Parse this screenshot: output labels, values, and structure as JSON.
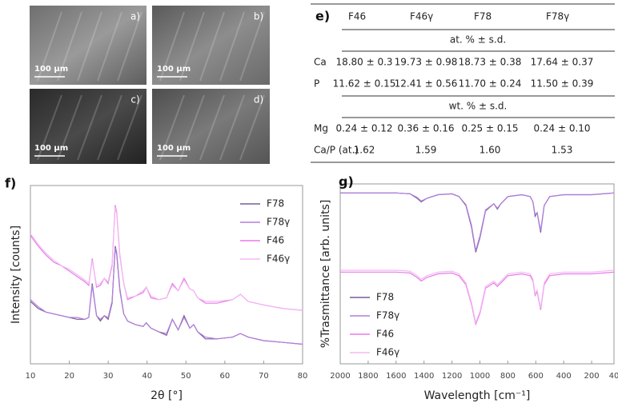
{
  "sem_panels": [
    {
      "label": "a)",
      "scale": "100 µm"
    },
    {
      "label": "b)",
      "scale": "100 µm"
    },
    {
      "label": "c)",
      "scale": "100 µm"
    },
    {
      "label": "d)",
      "scale": "100 µm"
    }
  ],
  "table": {
    "label": "e)",
    "columns": [
      "F46",
      "F46γ",
      "F78",
      "F78γ"
    ],
    "sections": [
      {
        "unit": "at. % ± s.d.",
        "rows": [
          [
            "Ca",
            "18.80 ± 0.3",
            "19.73 ± 0.98",
            "18.73 ± 0.38",
            "17.64 ± 0.37"
          ],
          [
            "P",
            "11.62 ± 0.15",
            "12.41 ± 0.56",
            "11.70 ± 0.24",
            "11.50 ± 0.39"
          ]
        ]
      },
      {
        "unit": "wt. % ± s.d.",
        "rows": [
          [
            "Mg",
            "0.24 ± 0.12",
            "0.36 ± 0.16",
            "0.25 ± 0.15",
            "0.24 ± 0.10"
          ],
          [
            "Ca/P (at.)",
            "1.62",
            "1.59",
            "1.60",
            "1.53"
          ]
        ]
      }
    ]
  },
  "chart_data": [
    {
      "type": "line",
      "label": "f)",
      "xlabel": "2θ [°]",
      "ylabel": "Intensity [counts]",
      "xlim": [
        10,
        80
      ],
      "ylim": [
        0,
        100
      ],
      "xticks": [
        10,
        20,
        30,
        40,
        50,
        60,
        70,
        80
      ],
      "x": [
        10,
        12,
        14,
        16,
        18,
        20,
        22,
        24,
        25,
        25.9,
        27,
        28,
        29,
        30,
        31,
        31.8,
        32.2,
        33,
        34,
        35,
        37,
        39,
        39.8,
        41,
        43,
        45,
        46.5,
        48,
        49.5,
        51,
        52,
        53,
        55,
        58,
        62,
        64,
        66,
        70,
        75,
        80
      ],
      "series": [
        {
          "name": "F78",
          "color": "#7b5c95",
          "values": [
            35,
            31,
            29,
            28,
            27,
            26,
            25,
            25,
            26,
            45,
            27,
            24,
            27,
            25,
            34,
            66,
            62,
            42,
            28,
            24,
            22,
            21,
            23,
            20,
            18,
            16,
            25,
            19,
            27,
            20,
            22,
            18,
            14,
            14,
            15,
            17,
            15,
            13,
            12,
            11
          ]
        },
        {
          "name": "F78γ",
          "color": "#b07fdc",
          "values": [
            36,
            32,
            29,
            28,
            27,
            26,
            26,
            25,
            26,
            44,
            27,
            25,
            27,
            26,
            35,
            65,
            61,
            41,
            28,
            24,
            22,
            21,
            23,
            20,
            18,
            17,
            25,
            19,
            26,
            20,
            22,
            18,
            15,
            14,
            15,
            17,
            15,
            13,
            12,
            11
          ]
        },
        {
          "name": "F46",
          "color": "#e87ae8",
          "values": [
            72,
            66,
            61,
            57,
            55,
            52,
            49,
            46,
            44,
            59,
            43,
            44,
            48,
            45,
            55,
            89,
            85,
            61,
            45,
            36,
            38,
            40,
            43,
            37,
            36,
            37,
            45,
            41,
            48,
            42,
            41,
            37,
            34,
            34,
            36,
            39,
            35,
            33,
            31,
            30
          ]
        },
        {
          "name": "F46γ",
          "color": "#f3b8f3",
          "values": [
            73,
            67,
            62,
            58,
            55,
            53,
            50,
            47,
            45,
            58,
            44,
            45,
            48,
            46,
            56,
            88,
            84,
            60,
            45,
            37,
            38,
            41,
            43,
            38,
            36,
            37,
            44,
            41,
            47,
            42,
            41,
            37,
            35,
            35,
            36,
            39,
            35,
            33,
            31,
            30
          ]
        }
      ],
      "legend": "upper right"
    },
    {
      "type": "line",
      "label": "g)",
      "xlabel": "Wavelength [cm⁻¹]",
      "ylabel": "%Trasmittance [arb. units]",
      "xlim": [
        2000,
        40
      ],
      "ylim": [
        0,
        100
      ],
      "xticks": [
        2000,
        1800,
        1600,
        1400,
        1200,
        1000,
        800,
        600,
        400,
        200,
        40
      ],
      "x": [
        2000,
        1800,
        1600,
        1500,
        1450,
        1420,
        1380,
        1300,
        1200,
        1150,
        1100,
        1060,
        1030,
        1000,
        960,
        900,
        875,
        850,
        800,
        700,
        640,
        620,
        605,
        590,
        565,
        540,
        500,
        400,
        200,
        40
      ],
      "series": [
        {
          "name": "F78",
          "color": "#7b5c95",
          "values": [
            95,
            95,
            95,
            94.5,
            92,
            90,
            92,
            94,
            94.5,
            93,
            88,
            76,
            62,
            70,
            85,
            89,
            86,
            89,
            93,
            94,
            93,
            90,
            82,
            84,
            73,
            88,
            93,
            94,
            94,
            95
          ]
        },
        {
          "name": "F78γ",
          "color": "#b07fdc",
          "values": [
            95,
            95,
            95,
            94.5,
            92.5,
            90.5,
            92,
            94,
            94.5,
            93,
            88.5,
            77,
            63,
            71,
            85.5,
            89,
            86.5,
            89,
            93,
            94,
            93,
            90,
            83,
            84,
            74,
            88,
            93,
            94,
            94,
            95
          ]
        },
        {
          "name": "F46",
          "color": "#e87ae8",
          "values": [
            51,
            51,
            51,
            50.5,
            48,
            46,
            48,
            50,
            50.5,
            49,
            44,
            33,
            22,
            28,
            42,
            45,
            43,
            45,
            49,
            50,
            49,
            46,
            38,
            40,
            30,
            44,
            49,
            50,
            50,
            51
          ]
        },
        {
          "name": "F46γ",
          "color": "#f3b8f3",
          "values": [
            52,
            52,
            52,
            51.5,
            49,
            47,
            49,
            51,
            51.5,
            50,
            45,
            34,
            23,
            29,
            43,
            46,
            44,
            46,
            50,
            51,
            50,
            47,
            39,
            41,
            31,
            45,
            50,
            51,
            51,
            52
          ]
        }
      ],
      "legend": "lower left"
    }
  ]
}
